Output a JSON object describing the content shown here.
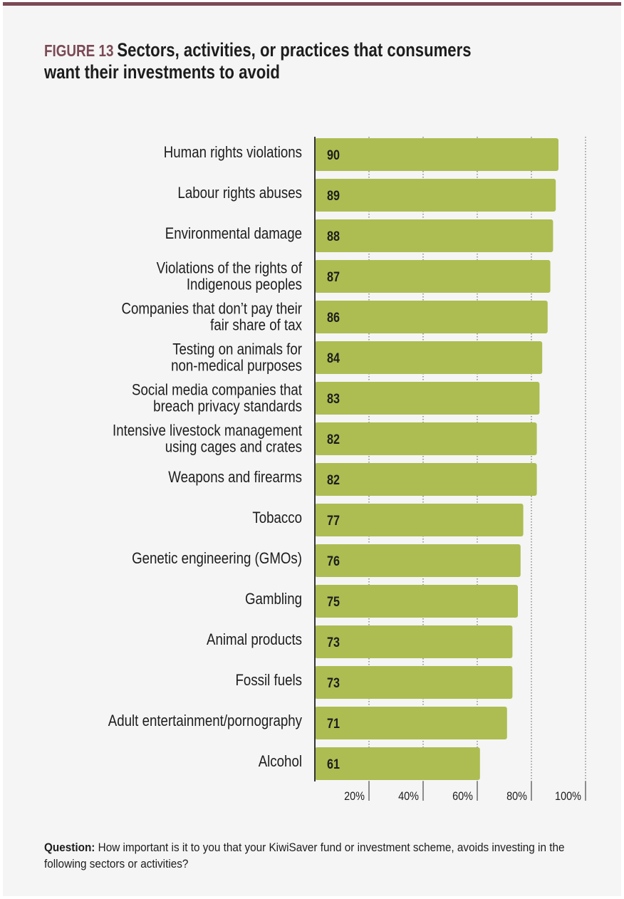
{
  "figure": {
    "label": "FIGURE 13",
    "title": "Sectors, activities, or practices that consumers want their investments to avoid"
  },
  "chart_data": {
    "type": "bar",
    "orientation": "horizontal",
    "categories": [
      [
        "Human rights violations"
      ],
      [
        "Labour rights abuses"
      ],
      [
        "Environmental damage"
      ],
      [
        "Violations of the rights of",
        "Indigenous peoples"
      ],
      [
        "Companies that don’t pay their",
        "fair share of tax"
      ],
      [
        "Testing on animals for",
        "non-medical purposes"
      ],
      [
        "Social media companies that",
        "breach privacy standards"
      ],
      [
        "Intensive livestock management",
        "using cages and crates"
      ],
      [
        "Weapons and firearms"
      ],
      [
        "Tobacco"
      ],
      [
        "Genetic engineering (GMOs)"
      ],
      [
        "Gambling"
      ],
      [
        "Animal products"
      ],
      [
        "Fossil fuels"
      ],
      [
        "Adult entertainment/pornography"
      ],
      [
        "Alcohol"
      ]
    ],
    "values": [
      90,
      89,
      88,
      87,
      86,
      84,
      83,
      82,
      82,
      77,
      76,
      75,
      73,
      73,
      71,
      61
    ],
    "xlim": [
      0,
      100
    ],
    "xticks": [
      20,
      40,
      60,
      80,
      100
    ],
    "xtick_labels": [
      "20%",
      "40%",
      "60%",
      "80%",
      "100%"
    ],
    "grid": "vertical dotted",
    "bar_color": "#adbd52",
    "title": "",
    "xlabel": "",
    "ylabel": ""
  },
  "note": {
    "label": "Question:",
    "text": " How important is it to you that your KiwiSaver fund or investment scheme, avoids investing in the following sectors or activities?"
  },
  "colors": {
    "accent": "#7a4a55",
    "background": "#f5f5f5"
  }
}
